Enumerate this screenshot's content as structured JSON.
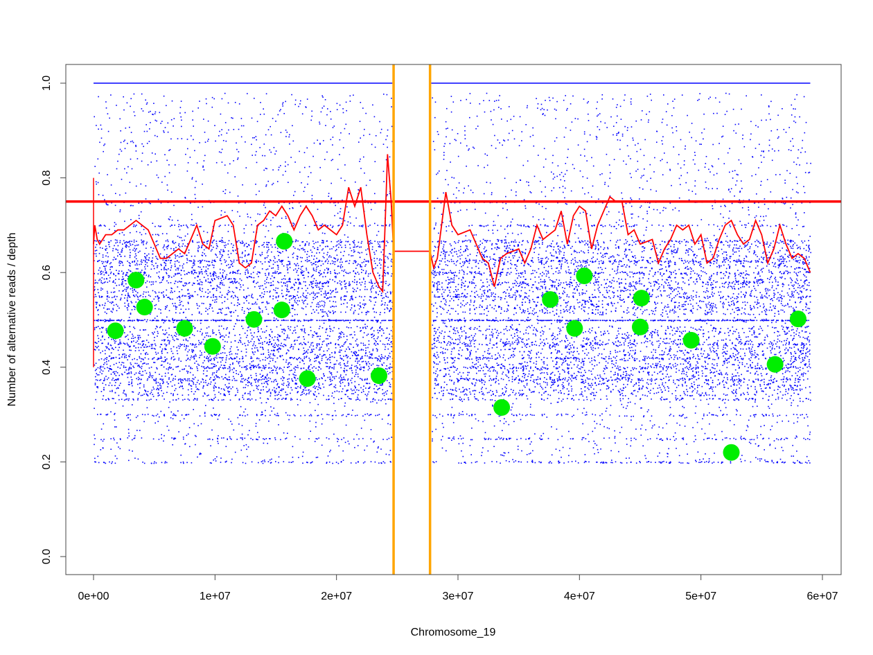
{
  "chart_data": {
    "type": "scatter",
    "title": "",
    "xlabel": "Chromosome_19",
    "ylabel": "Number of alternative reads / depth",
    "xlim": [
      -2300000,
      61000000
    ],
    "ylim": [
      -0.04,
      1.04
    ],
    "x_ticks": [
      {
        "value": 0,
        "label": "0e+00"
      },
      {
        "value": 10000000,
        "label": "1e+07"
      },
      {
        "value": 20000000,
        "label": "2e+07"
      },
      {
        "value": 30000000,
        "label": "3e+07"
      },
      {
        "value": 40000000,
        "label": "4e+07"
      },
      {
        "value": 50000000,
        "label": "5e+07"
      },
      {
        "value": 60000000,
        "label": "6e+07"
      }
    ],
    "y_ticks": [
      {
        "value": 0.0,
        "label": "0.0"
      },
      {
        "value": 0.2,
        "label": "0.2"
      },
      {
        "value": 0.4,
        "label": "0.4"
      },
      {
        "value": 0.6,
        "label": "0.6"
      },
      {
        "value": 0.8,
        "label": "0.8"
      },
      {
        "value": 1.0,
        "label": "1.0"
      }
    ],
    "grid": false,
    "colors": {
      "snv": "#0000ff",
      "smooth": "#ff0000",
      "threshold": "#ff0000",
      "centromere": "#ffa500",
      "segments": "#00ee00"
    },
    "snv_scatter": {
      "description_series": "per-variant allele fraction",
      "x_ranges": [
        [
          0,
          24600000
        ],
        [
          27800000,
          59000000
        ]
      ],
      "y_range": [
        0.2,
        0.98
      ],
      "homozygous_y": 1.0,
      "approx_count": 14000
    },
    "threshold_line": {
      "y": 0.75
    },
    "centromere_lines": [
      24700000,
      27700000
    ],
    "smoothed_line": {
      "x_millions": [
        0,
        0.1,
        0.3,
        0.5,
        1.0,
        1.5,
        2.0,
        2.5,
        3.0,
        3.5,
        4.0,
        4.5,
        5.0,
        5.5,
        6.0,
        6.5,
        7.0,
        7.5,
        8.0,
        8.5,
        9.0,
        9.5,
        10.0,
        11.0,
        11.5,
        12.0,
        12.5,
        13.0,
        13.5,
        14.0,
        14.5,
        15.0,
        15.5,
        16.0,
        16.5,
        17.0,
        17.5,
        18.0,
        18.5,
        19.0,
        20.0,
        20.5,
        21.0,
        21.5,
        22.0,
        22.5,
        23.0,
        23.5,
        23.8,
        24.0,
        24.2,
        24.5,
        24.7,
        27.7,
        28.0,
        28.3,
        28.7,
        29.0,
        29.5,
        30.0,
        31.0,
        32.0,
        32.5,
        33.0,
        33.5,
        34.0,
        35.0,
        35.5,
        36.0,
        36.5,
        37.0,
        38.0,
        38.5,
        39.0,
        39.5,
        40.0,
        40.5,
        41.0,
        41.5,
        42.0,
        42.5,
        43.0,
        43.5,
        44.0,
        44.5,
        45.0,
        46.0,
        46.5,
        47.0,
        47.5,
        48.0,
        48.5,
        49.0,
        49.5,
        50.0,
        50.5,
        51.0,
        51.5,
        52.0,
        52.5,
        53.0,
        53.5,
        54.0,
        54.5,
        55.0,
        55.5,
        56.0,
        56.5,
        57.0,
        57.5,
        58.0,
        58.5,
        59.0
      ],
      "y": [
        0.66,
        0.7,
        0.67,
        0.66,
        0.68,
        0.68,
        0.69,
        0.69,
        0.7,
        0.71,
        0.7,
        0.69,
        0.66,
        0.63,
        0.63,
        0.64,
        0.65,
        0.64,
        0.67,
        0.7,
        0.66,
        0.65,
        0.71,
        0.72,
        0.7,
        0.62,
        0.61,
        0.62,
        0.7,
        0.71,
        0.73,
        0.72,
        0.74,
        0.72,
        0.69,
        0.72,
        0.74,
        0.72,
        0.69,
        0.7,
        0.68,
        0.7,
        0.78,
        0.74,
        0.78,
        0.68,
        0.6,
        0.57,
        0.56,
        0.7,
        0.85,
        0.75,
        0.645,
        0.645,
        0.61,
        0.63,
        0.71,
        0.77,
        0.7,
        0.68,
        0.69,
        0.63,
        0.62,
        0.57,
        0.63,
        0.64,
        0.65,
        0.62,
        0.65,
        0.7,
        0.67,
        0.69,
        0.73,
        0.66,
        0.72,
        0.74,
        0.73,
        0.65,
        0.7,
        0.73,
        0.76,
        0.75,
        0.75,
        0.68,
        0.69,
        0.66,
        0.67,
        0.62,
        0.65,
        0.67,
        0.7,
        0.69,
        0.7,
        0.66,
        0.68,
        0.62,
        0.63,
        0.67,
        0.7,
        0.71,
        0.68,
        0.66,
        0.67,
        0.71,
        0.68,
        0.62,
        0.65,
        0.7,
        0.66,
        0.63,
        0.64,
        0.63,
        0.6
      ],
      "start_spike": [
        0.4,
        0.8
      ]
    },
    "segments": {
      "x": [
        1800000,
        3500000,
        4200000,
        7500000,
        9800000,
        13200000,
        15500000,
        15700000,
        17600000,
        23500000,
        33600000,
        37600000,
        39600000,
        40400000,
        45000000,
        45100000,
        49200000,
        52500000,
        56100000,
        58000000
      ],
      "y": [
        0.477,
        0.584,
        0.527,
        0.482,
        0.444,
        0.501,
        0.521,
        0.666,
        0.376,
        0.382,
        0.315,
        0.543,
        0.482,
        0.593,
        0.485,
        0.546,
        0.457,
        0.22,
        0.406,
        0.502
      ]
    }
  }
}
